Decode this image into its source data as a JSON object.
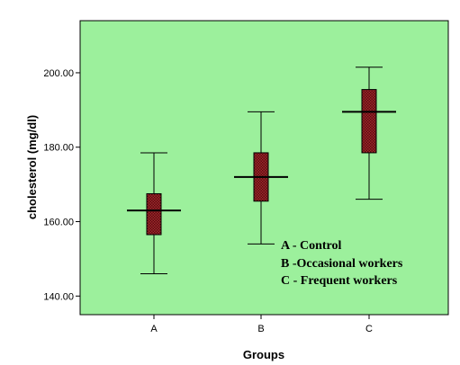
{
  "chart_data": {
    "type": "box",
    "xlabel": "Groups",
    "ylabel": "cholesterol (mg/dl)",
    "ylim": [
      135,
      214
    ],
    "yticks": [
      140,
      160,
      180,
      200
    ],
    "ytick_labels": [
      "140.00",
      "160.00",
      "180.00",
      "200.00"
    ],
    "categories": [
      "A",
      "B",
      "C"
    ],
    "boxes": [
      {
        "category": "A",
        "whisker_low": 146,
        "q1": 156.5,
        "median": 163,
        "q3": 167.5,
        "whisker_high": 178.5
      },
      {
        "category": "B",
        "whisker_low": 154,
        "q1": 165.5,
        "median": 172,
        "q3": 178.5,
        "whisker_high": 189.5
      },
      {
        "category": "C",
        "whisker_low": 166,
        "q1": 178.5,
        "median": 189.5,
        "q3": 195.5,
        "whisker_high": 201.5
      }
    ],
    "annotation_lines": [
      "A - Control",
      "B -Occasional workers",
      "C - Frequent workers"
    ],
    "legend_position": "bottom-right",
    "grid": false,
    "colors": {
      "plot_background": "#9cf09c",
      "box_fill": "#a0282c",
      "box_pattern": "#5a0c10",
      "line": "#000000"
    }
  }
}
